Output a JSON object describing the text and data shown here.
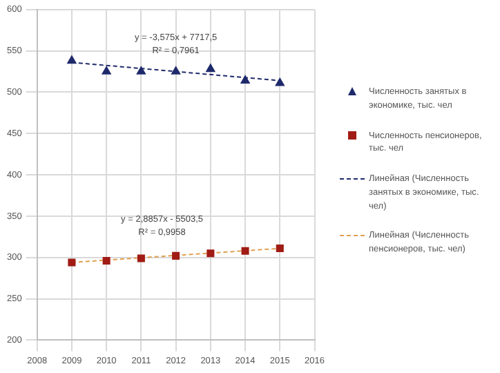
{
  "chart_data": {
    "type": "scatter",
    "xlim": [
      2008,
      2016
    ],
    "xticks": [
      2008,
      2009,
      2010,
      2011,
      2012,
      2013,
      2014,
      2015,
      2016
    ],
    "ylim": [
      200,
      600
    ],
    "yticks": [
      200,
      250,
      300,
      350,
      400,
      450,
      500,
      550,
      600
    ],
    "grid": true,
    "legend": "right",
    "series": [
      {
        "name": "Численность занятых в экономике, тыс. чел",
        "type": "scatter",
        "marker": "triangle",
        "color": "#1f2a6b",
        "x": [
          2009,
          2010,
          2011,
          2012,
          2013,
          2014,
          2015
        ],
        "values": [
          538,
          525,
          525,
          525,
          528,
          514,
          511
        ]
      },
      {
        "name": "Численность пенсионеров, тыс. чел",
        "type": "scatter",
        "marker": "square",
        "color": "#a01c14",
        "x": [
          2009,
          2010,
          2011,
          2012,
          2013,
          2014,
          2015
        ],
        "values": [
          294,
          296,
          299,
          302,
          305,
          308,
          311
        ]
      },
      {
        "name": "Линейная (Численность занятых в экономике, тыс. чел)",
        "type": "line",
        "marker": "none",
        "line_style": "dashed",
        "color": "#1f2a6b",
        "x": [
          2009,
          2015
        ],
        "values": [
          536,
          514
        ]
      },
      {
        "name": "Линейная (Численность пенсионеров, тыс. чел)",
        "type": "line",
        "marker": "none",
        "line_style": "dashed",
        "color": "#e0a050",
        "x": [
          2009,
          2015
        ],
        "values": [
          294,
          311
        ]
      }
    ],
    "annotations": [
      "y = -3,575x + 7717,5",
      "R² = 0,7961",
      "y = 2,8857x - 5503,5",
      "R² = 0,9958"
    ]
  }
}
